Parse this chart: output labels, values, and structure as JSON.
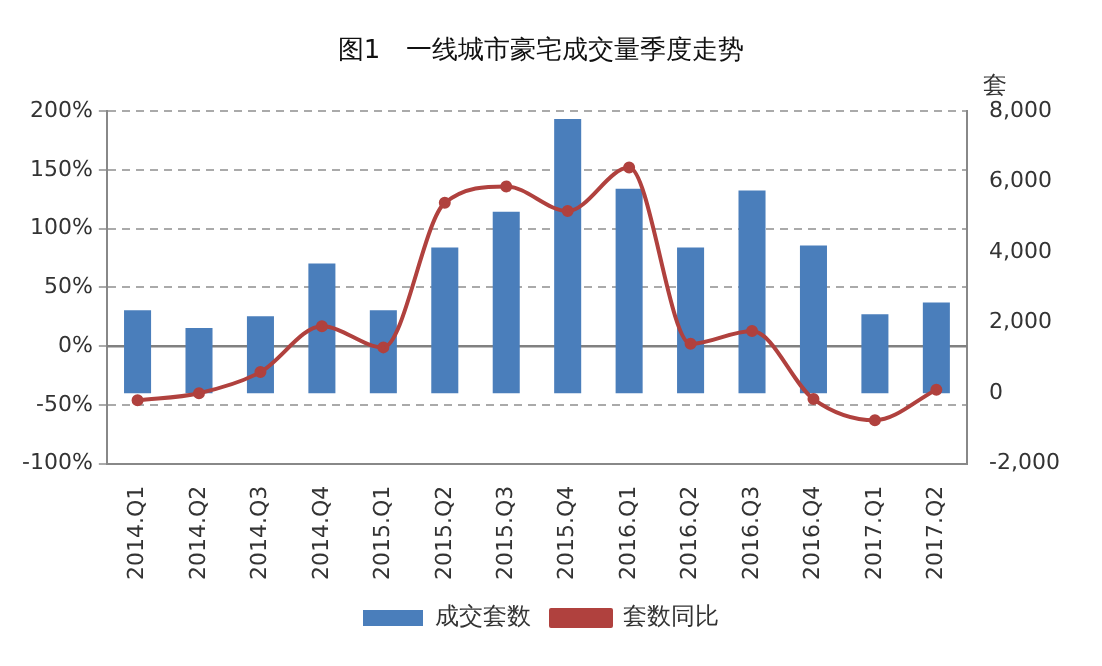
{
  "chart_data": {
    "type": "bar",
    "title": "图1　一线城市豪宅成交量季度走势",
    "y2label": "套",
    "categories": [
      "2014.Q1",
      "2014.Q2",
      "2014.Q3",
      "2014.Q4",
      "2015.Q1",
      "2015.Q2",
      "2015.Q3",
      "2015.Q4",
      "2016.Q1",
      "2016.Q2",
      "2016.Q3",
      "2016.Q4",
      "2017.Q1",
      "2017.Q2"
    ],
    "series": [
      {
        "name": "成交套数",
        "axis": "y2",
        "color": "#4a7ebb",
        "values": [
          2350,
          1850,
          2180,
          3680,
          2350,
          4130,
          5150,
          7780,
          5800,
          4130,
          5750,
          4190,
          2240,
          2570
        ]
      },
      {
        "name": "套数同比",
        "type": "line",
        "axis": "y",
        "color": "#b0413e",
        "marker": "circle",
        "values": [
          -46,
          -40,
          -22,
          17,
          -1,
          122,
          136,
          115,
          152,
          2,
          13,
          -45,
          -63,
          -37
        ]
      }
    ],
    "ylim": [
      -100,
      200
    ],
    "yticks": [
      {
        "value": -100,
        "label": "-100%"
      },
      {
        "value": -50,
        "label": "-50%"
      },
      {
        "value": 0,
        "label": "0%"
      },
      {
        "value": 50,
        "label": "50%"
      },
      {
        "value": 100,
        "label": "100%"
      },
      {
        "value": 150,
        "label": "150%"
      },
      {
        "value": 200,
        "label": "200%"
      }
    ],
    "y2lim": [
      -2000,
      8000
    ],
    "y2ticks": [
      {
        "value": -2000,
        "label": "-2,000"
      },
      {
        "value": 0,
        "label": "0"
      },
      {
        "value": 2000,
        "label": "2,000"
      },
      {
        "value": 4000,
        "label": "4,000"
      },
      {
        "value": 6000,
        "label": "6,000"
      },
      {
        "value": 8000,
        "label": "8,000"
      }
    ],
    "ref_lines": [
      {
        "axis": "y",
        "value": 0,
        "color": "#808080",
        "line_style": "solid"
      }
    ],
    "grid": "y",
    "legend": "bottom"
  }
}
